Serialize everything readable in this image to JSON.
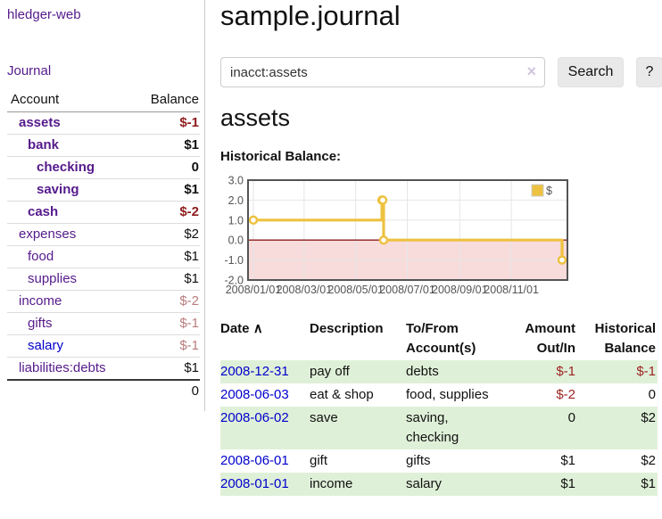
{
  "colors": {
    "link-purple": "#551a8b",
    "link-blue": "#0000cc",
    "neg-strong": "#8e1c1c",
    "neg-muted": "#b97c7c",
    "neg-table": "#9b2323",
    "row-green": "#dff0d8",
    "button-bg": "#e9e9e9",
    "series-yellow": "#edc240"
  },
  "sidebar": {
    "app_title": "hledger-web",
    "journal_link": "Journal",
    "accounts": {
      "headers": {
        "account": "Account",
        "balance": "Balance"
      },
      "rows": [
        {
          "name": "assets",
          "balance": "$-1"
        },
        {
          "name": "bank",
          "balance": "$1"
        },
        {
          "name": "checking",
          "balance": "0"
        },
        {
          "name": "saving",
          "balance": "$1"
        },
        {
          "name": "cash",
          "balance": "$-2"
        },
        {
          "name": "expenses",
          "balance": "$2"
        },
        {
          "name": "food",
          "balance": "$1"
        },
        {
          "name": "supplies",
          "balance": "$1"
        },
        {
          "name": "income",
          "balance": "$-2"
        },
        {
          "name": "gifts",
          "balance": "$-1"
        },
        {
          "name": "salary",
          "balance": "$-1"
        },
        {
          "name": "liabilities:debts",
          "balance": "$1"
        }
      ],
      "total": "0"
    }
  },
  "header": {
    "title": "sample.journal"
  },
  "search": {
    "value": "inacct:assets",
    "clear_icon": "×",
    "search_button": "Search",
    "help_button": "?"
  },
  "account_page": {
    "heading": "assets",
    "chart_title": "Historical Balance:"
  },
  "chart_data": {
    "type": "line",
    "interpolation": "step-after",
    "series": [
      {
        "name": "$",
        "color": "#edc240",
        "points": [
          [
            "2008-01-01",
            1
          ],
          [
            "2008-06-01",
            2
          ],
          [
            "2008-06-02",
            2
          ],
          [
            "2008-06-03",
            0
          ],
          [
            "2008-12-31",
            -1
          ]
        ]
      }
    ],
    "x_range": [
      "2008-01-01",
      "2008-12-31"
    ],
    "x_ticks": [
      "2008/01/01",
      "2008/03/01",
      "2008/05/01",
      "2008/07/01",
      "2008/09/01",
      "2008/11/01"
    ],
    "y_ticks": [
      3.0,
      2.0,
      1.0,
      0.0,
      -1.0,
      -2.0
    ],
    "ylim": [
      -2,
      3
    ],
    "grid": true,
    "grid_color": "#e6e6e6",
    "border_color": "#545454",
    "zero_line_color": "#8b1c1c",
    "negative_region_color": "#f8dbdb",
    "legend_position": "top-right"
  },
  "register": {
    "headers": [
      "Date",
      "Description",
      "To/From Account(s)",
      "Amount Out/In",
      "Historical Balance"
    ],
    "sort_indicator": "∧",
    "rows": [
      {
        "date": "2008-12-31",
        "description": "pay off",
        "accounts": "debts",
        "amount": "$-1",
        "balance": "$-1"
      },
      {
        "date": "2008-06-03",
        "description": "eat & shop",
        "accounts": "food, supplies",
        "amount": "$-2",
        "balance": "0"
      },
      {
        "date": "2008-06-02",
        "description": "save",
        "accounts": "saving, checking",
        "amount": "0",
        "balance": "$2"
      },
      {
        "date": "2008-06-01",
        "description": "gift",
        "accounts": "gifts",
        "amount": "$1",
        "balance": "$2"
      },
      {
        "date": "2008-01-01",
        "description": "income",
        "accounts": "salary",
        "amount": "$1",
        "balance": "$1"
      }
    ]
  }
}
